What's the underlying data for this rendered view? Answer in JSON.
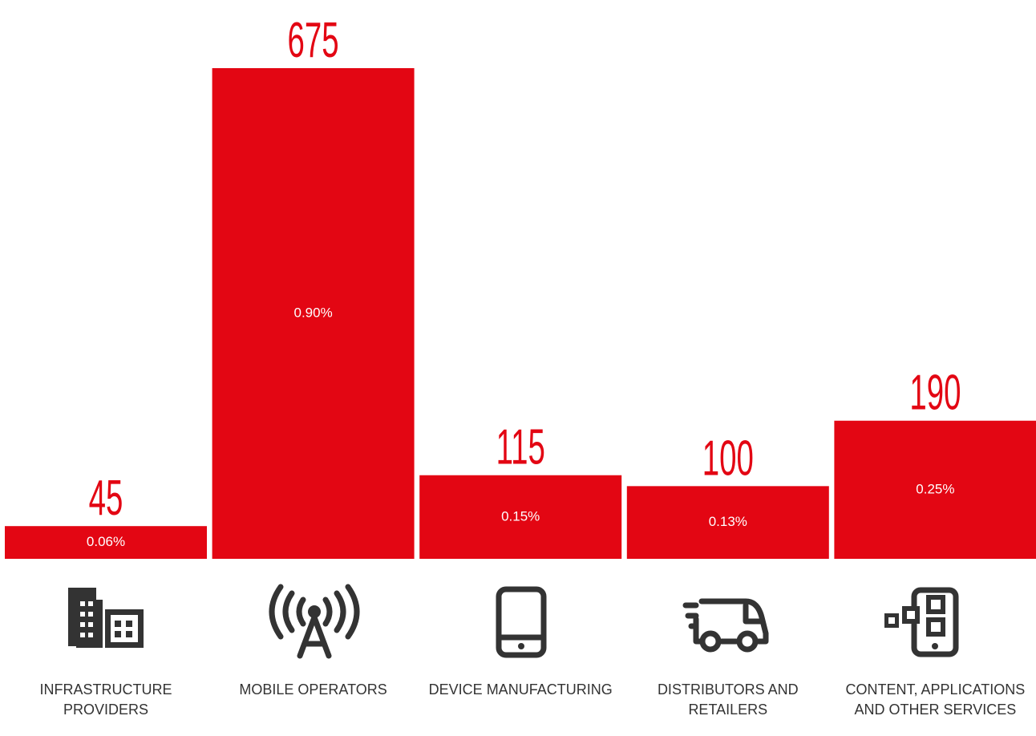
{
  "chart_data": {
    "type": "bar",
    "categories": [
      "INFRASTRUCTURE PROVIDERS",
      "MOBILE OPERATORS",
      "DEVICE MANUFACTURING",
      "DISTRIBUTORS AND RETAILERS",
      "CONTENT, APPLICATIONS AND OTHER SERVICES"
    ],
    "values": [
      45,
      675,
      115,
      100,
      190
    ],
    "shares": [
      0.06,
      0.9,
      0.15,
      0.13,
      0.25
    ],
    "share_labels": [
      "0.06%",
      "0.90%",
      "0.15%",
      "0.13%",
      "0.25%"
    ],
    "color": "#e30613"
  }
}
